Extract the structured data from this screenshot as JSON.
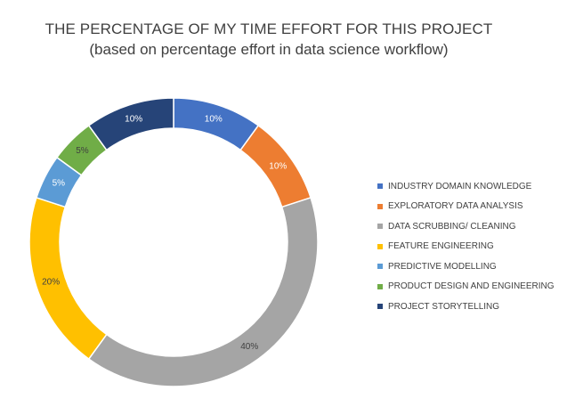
{
  "chart_data": {
    "type": "pie",
    "variant": "doughnut",
    "title": "THE PERCENTAGE OF MY TIME EFFORT FOR THIS PROJECT",
    "subtitle": "(based on percentage effort in data science workflow)",
    "legend_position": "right",
    "slices": [
      {
        "label": "INDUSTRY DOMAIN KNOWLEDGE",
        "value": 10,
        "display": "10%",
        "color": "#4472C4",
        "label_color": "#ffffff"
      },
      {
        "label": "EXPLORATORY DATA ANALYSIS",
        "value": 10,
        "display": "10%",
        "color": "#ED7D31",
        "label_color": "#ffffff"
      },
      {
        "label": "DATA SCRUBBING/ CLEANING",
        "value": 40,
        "display": "40%",
        "color": "#A5A5A5",
        "label_color": "#404040"
      },
      {
        "label": "FEATURE ENGINEERING",
        "value": 20,
        "display": "20%",
        "color": "#FFC000",
        "label_color": "#404040"
      },
      {
        "label": "PREDICTIVE MODELLING",
        "value": 5,
        "display": "5%",
        "color": "#5B9BD5",
        "label_color": "#ffffff"
      },
      {
        "label": "PRODUCT DESIGN AND ENGINEERING",
        "value": 5,
        "display": "5%",
        "color": "#70AD47",
        "label_color": "#404040"
      },
      {
        "label": "PROJECT STORYTELLING",
        "value": 10,
        "display": "10%",
        "color": "#264478",
        "label_color": "#ffffff"
      }
    ]
  }
}
